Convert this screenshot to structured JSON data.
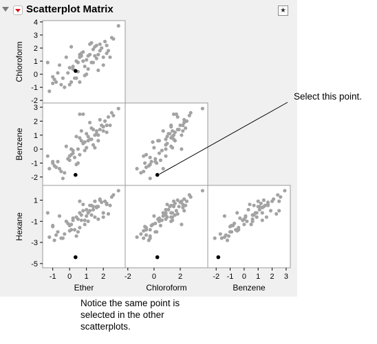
{
  "report": {
    "title": "Scatterplot Matrix"
  },
  "annotations": {
    "callout": "Select this point.",
    "footnote": "Notice the same point is selected in the other scatterplots."
  },
  "colors": {
    "point": "#a3a3a3",
    "selected_point": "#000000",
    "frame": "#9a9a9a",
    "background": "#f0f0f0",
    "plot_background": "#ffffff"
  },
  "chart_data": {
    "type": "scatter",
    "variables": [
      "Ether",
      "Chloroform",
      "Benzene",
      "Hexane"
    ],
    "row_variables": [
      "Chloroform",
      "Benzene",
      "Hexane"
    ],
    "column_variables": [
      "Ether",
      "Chloroform",
      "Benzene"
    ],
    "axes": {
      "Ether": {
        "range": [
          -1.6,
          3.3
        ],
        "ticks": [
          -1,
          0,
          1,
          2
        ]
      },
      "Chloroform": {
        "range": [
          -2.2,
          4.1
        ],
        "ticks": [
          -2,
          -1,
          0,
          1,
          2,
          3,
          4
        ],
        "xticks": [
          -2,
          0,
          2
        ]
      },
      "Benzene": {
        "range": [
          -2.6,
          3.3
        ],
        "ticks": [
          -2,
          -1,
          0,
          1,
          2,
          3
        ]
      },
      "Hexane": {
        "range": [
          -5.4,
          2.4
        ],
        "ticks": [
          -5,
          -3,
          -1,
          1
        ]
      }
    },
    "selected_point": {
      "Ether": 0.35,
      "Chloroform": 0.25,
      "Benzene": -1.85,
      "Hexane": -4.4
    },
    "points": [
      [
        -1.3,
        0.9,
        -0.5,
        -0.2
      ],
      [
        -1.0,
        -0.7,
        -1.0,
        -1.5
      ],
      [
        -0.6,
        0.7,
        -1.4,
        -0.5
      ],
      [
        -0.4,
        -0.3,
        -2.1,
        -2.6
      ],
      [
        0.2,
        0.4,
        -0.3,
        -0.7
      ],
      [
        0.6,
        1.3,
        0.8,
        -0.2
      ],
      [
        1.0,
        1.1,
        1.1,
        0.1
      ],
      [
        1.4,
        1.9,
        1.4,
        0.4
      ],
      [
        1.9,
        2.0,
        1.7,
        0.8
      ],
      [
        2.6,
        2.7,
        2.4,
        1.5
      ],
      [
        2.9,
        3.7,
        2.9,
        1.9
      ],
      [
        -0.9,
        -0.4,
        -1.2,
        -2.8
      ],
      [
        0.0,
        0.5,
        -0.8,
        -1.4
      ],
      [
        0.4,
        -0.3,
        -1.1,
        -2.4
      ],
      [
        0.9,
        0.6,
        -0.1,
        -0.9
      ],
      [
        1.3,
        0.9,
        0.7,
        -0.4
      ],
      [
        1.7,
        1.5,
        1.0,
        0.4
      ],
      [
        2.2,
        2.2,
        1.7,
        0.6
      ],
      [
        -0.2,
        1.3,
        0.2,
        -1.0
      ],
      [
        0.1,
        -0.6,
        -0.4,
        -1.8
      ],
      [
        0.7,
        1.6,
        0.6,
        -0.4
      ],
      [
        1.2,
        1.5,
        0.7,
        0.5
      ],
      [
        1.6,
        2.2,
        1.3,
        0.3
      ],
      [
        2.0,
        1.3,
        1.6,
        -0.6
      ],
      [
        2.3,
        1.8,
        2.3,
        -0.3
      ],
      [
        -0.8,
        -0.6,
        -1.3,
        -2.3
      ],
      [
        -0.1,
        0.1,
        -0.7,
        -1.2
      ],
      [
        0.5,
        0.9,
        0.0,
        -0.8
      ],
      [
        0.8,
        1.0,
        0.4,
        0.6
      ],
      [
        1.1,
        1.4,
        0.9,
        -0.2
      ],
      [
        1.5,
        2.1,
        1.0,
        0.9
      ],
      [
        1.8,
        1.8,
        1.4,
        1.0
      ],
      [
        2.1,
        2.5,
        2.0,
        0.9
      ],
      [
        -1.2,
        -1.3,
        -1.4,
        -2.5
      ],
      [
        -0.5,
        -0.8,
        -1.6,
        -2.6
      ],
      [
        0.3,
        -0.3,
        -0.6,
        -1.8
      ],
      [
        0.6,
        -0.6,
        -0.4,
        -1.6
      ],
      [
        1.0,
        0.0,
        0.1,
        -0.5
      ],
      [
        1.4,
        0.9,
        0.3,
        0.1
      ],
      [
        1.7,
        0.3,
        0.6,
        -0.8
      ],
      [
        2.4,
        1.3,
        1.7,
        0.5
      ],
      [
        -0.3,
        -1.0,
        -1.7,
        -2.2
      ],
      [
        0.2,
        0.6,
        -0.1,
        -0.9
      ],
      [
        0.9,
        -0.1,
        0.5,
        -1.3
      ],
      [
        1.3,
        2.4,
        1.5,
        0.5
      ],
      [
        1.6,
        1.2,
        1.1,
        0.4
      ],
      [
        2.0,
        0.7,
        1.3,
        -0.2
      ],
      [
        2.5,
        2.8,
        2.6,
        1.3
      ],
      [
        -1.0,
        -0.2,
        -0.9,
        -1.4
      ],
      [
        0.4,
        1.0,
        0.9,
        -0.6
      ],
      [
        0.7,
        1.4,
        1.3,
        -0.9
      ],
      [
        1.2,
        2.3,
        1.9,
        0.0
      ],
      [
        1.8,
        2.3,
        2.1,
        1.1
      ],
      [
        2.2,
        1.6,
        1.2,
        0.7
      ],
      [
        0.1,
        2.1,
        0.0,
        -1.3
      ],
      [
        0.8,
        1.7,
        2.5,
        0.0
      ],
      [
        1.5,
        1.4,
        0.1,
        -0.6
      ],
      [
        0.5,
        0.2,
        -1.0,
        -2.0
      ],
      [
        1.1,
        0.4,
        0.6,
        -1.0
      ],
      [
        0.0,
        -0.8,
        -0.5,
        -1.9
      ],
      [
        -0.7,
        0.1,
        -0.9,
        -2.0
      ],
      [
        0.6,
        1.5,
        2.5,
        0.9
      ]
    ]
  }
}
